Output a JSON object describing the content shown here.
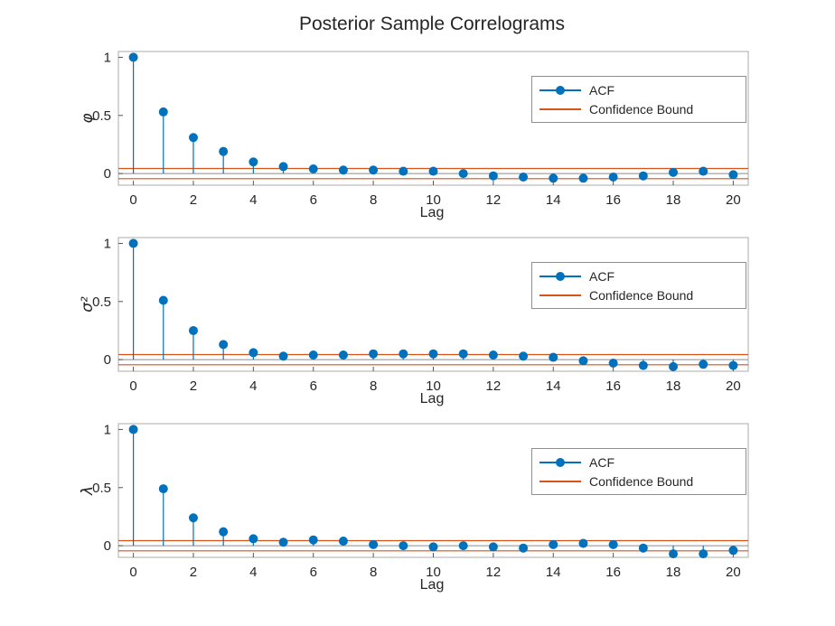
{
  "title": "Posterior Sample Correlograms",
  "legend": {
    "acf_label": "ACF",
    "bound_label": "Confidence Bound"
  },
  "colors": {
    "acf": "#0072BD",
    "confidence_bound": "#D95319",
    "baseline": "#8C8C8C",
    "axis_box": "#ABABAB",
    "tick_mark": "#555555",
    "tick_text": "#262626"
  },
  "chart_data": [
    {
      "type": "stem",
      "name": "phi",
      "ylabel": "φ",
      "xlabel": "Lag",
      "x": [
        0,
        1,
        2,
        3,
        4,
        5,
        6,
        7,
        8,
        9,
        10,
        11,
        12,
        13,
        14,
        15,
        16,
        17,
        18,
        19,
        20
      ],
      "values": [
        1.0,
        0.53,
        0.31,
        0.19,
        0.1,
        0.06,
        0.04,
        0.03,
        0.03,
        0.02,
        0.02,
        0.0,
        -0.02,
        -0.03,
        -0.04,
        -0.04,
        -0.03,
        -0.02,
        0.01,
        0.02,
        -0.01
      ],
      "confidence_bound": 0.044,
      "xlim": [
        -0.5,
        20.5
      ],
      "ylim": [
        -0.1,
        1.05
      ],
      "xticks": [
        0,
        2,
        4,
        6,
        8,
        10,
        12,
        14,
        16,
        18,
        20
      ],
      "yticks": [
        0,
        0.5,
        1
      ],
      "legend": [
        "ACF",
        "Confidence Bound"
      ],
      "legend_position": "northeast",
      "grid": false
    },
    {
      "type": "stem",
      "name": "sigma2",
      "ylabel": "σ²",
      "xlabel": "Lag",
      "x": [
        0,
        1,
        2,
        3,
        4,
        5,
        6,
        7,
        8,
        9,
        10,
        11,
        12,
        13,
        14,
        15,
        16,
        17,
        18,
        19,
        20
      ],
      "values": [
        1.0,
        0.51,
        0.25,
        0.13,
        0.06,
        0.03,
        0.04,
        0.04,
        0.05,
        0.05,
        0.05,
        0.05,
        0.04,
        0.03,
        0.02,
        -0.01,
        -0.03,
        -0.05,
        -0.06,
        -0.04,
        -0.05
      ],
      "confidence_bound": 0.044,
      "xlim": [
        -0.5,
        20.5
      ],
      "ylim": [
        -0.1,
        1.05
      ],
      "xticks": [
        0,
        2,
        4,
        6,
        8,
        10,
        12,
        14,
        16,
        18,
        20
      ],
      "yticks": [
        0,
        0.5,
        1
      ],
      "legend": [
        "ACF",
        "Confidence Bound"
      ],
      "legend_position": "northeast",
      "grid": false
    },
    {
      "type": "stem",
      "name": "lambda",
      "ylabel": "λ",
      "xlabel": "Lag",
      "x": [
        0,
        1,
        2,
        3,
        4,
        5,
        6,
        7,
        8,
        9,
        10,
        11,
        12,
        13,
        14,
        15,
        16,
        17,
        18,
        19,
        20
      ],
      "values": [
        1.0,
        0.49,
        0.24,
        0.12,
        0.06,
        0.03,
        0.05,
        0.04,
        0.01,
        0.0,
        -0.01,
        0.0,
        -0.01,
        -0.02,
        0.01,
        0.02,
        0.01,
        -0.02,
        -0.07,
        -0.07,
        -0.04
      ],
      "confidence_bound": 0.044,
      "xlim": [
        -0.5,
        20.5
      ],
      "ylim": [
        -0.1,
        1.05
      ],
      "xticks": [
        0,
        2,
        4,
        6,
        8,
        10,
        12,
        14,
        16,
        18,
        20
      ],
      "yticks": [
        0,
        0.5,
        1
      ],
      "legend": [
        "ACF",
        "Confidence Bound"
      ],
      "legend_position": "northeast",
      "grid": false
    }
  ]
}
